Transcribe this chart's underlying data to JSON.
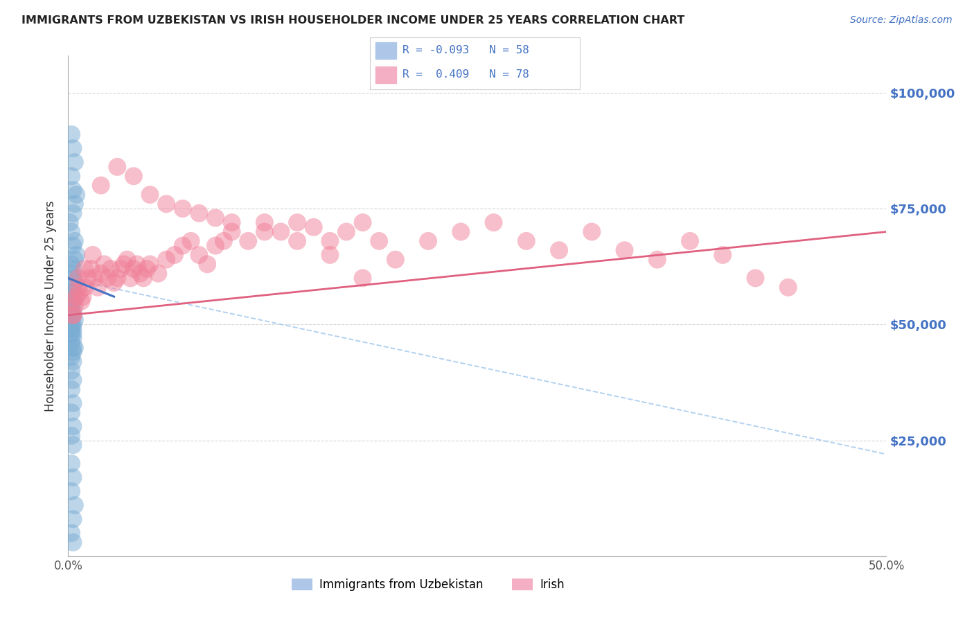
{
  "title": "IMMIGRANTS FROM UZBEKISTAN VS IRISH HOUSEHOLDER INCOME UNDER 25 YEARS CORRELATION CHART",
  "source": "Source: ZipAtlas.com",
  "ylabel": "Householder Income Under 25 years",
  "x_min": 0.0,
  "x_max": 0.5,
  "y_min": 0,
  "y_max": 108000,
  "y_ticks": [
    0,
    25000,
    50000,
    75000,
    100000
  ],
  "y_tick_labels_right": [
    "",
    "$25,000",
    "$50,000",
    "$75,000",
    "$100,000"
  ],
  "x_ticks": [
    0.0,
    0.05,
    0.1,
    0.15,
    0.2,
    0.25,
    0.3,
    0.35,
    0.4,
    0.45,
    0.5
  ],
  "x_tick_labels": [
    "0.0%",
    "",
    "",
    "",
    "",
    "",
    "",
    "",
    "",
    "",
    "50.0%"
  ],
  "legend_label1": "Immigrants from Uzbekistan",
  "legend_label2": "Irish",
  "color_uzbek": "#7aadd4",
  "color_irish": "#f08098",
  "alpha_dot": 0.5,
  "background_color": "#ffffff",
  "grid_color": "#cccccc",
  "uzbek_x": [
    0.002,
    0.003,
    0.004,
    0.002,
    0.003,
    0.005,
    0.004,
    0.003,
    0.001,
    0.002,
    0.004,
    0.003,
    0.005,
    0.004,
    0.002,
    0.003,
    0.002,
    0.003,
    0.004,
    0.003,
    0.002,
    0.003,
    0.004,
    0.002,
    0.003,
    0.002,
    0.003,
    0.002,
    0.003,
    0.004,
    0.003,
    0.002,
    0.003,
    0.002,
    0.003,
    0.002,
    0.003,
    0.002,
    0.003,
    0.004,
    0.003,
    0.002,
    0.003,
    0.002,
    0.003,
    0.002,
    0.003,
    0.002,
    0.003,
    0.002,
    0.003,
    0.002,
    0.003,
    0.002,
    0.004,
    0.003,
    0.002,
    0.003
  ],
  "uzbek_y": [
    91000,
    88000,
    85000,
    82000,
    79000,
    78000,
    76000,
    74000,
    72000,
    70000,
    68000,
    67000,
    65000,
    64000,
    63000,
    62000,
    61000,
    60000,
    59000,
    58000,
    57000,
    57000,
    56000,
    55000,
    55000,
    54000,
    53000,
    52000,
    52000,
    51000,
    50000,
    50000,
    49000,
    49000,
    48000,
    48000,
    47000,
    46000,
    45000,
    45000,
    44000,
    43000,
    42000,
    40000,
    38000,
    36000,
    33000,
    31000,
    28000,
    26000,
    24000,
    20000,
    17000,
    14000,
    11000,
    8000,
    5000,
    3000
  ],
  "irish_x": [
    0.002,
    0.003,
    0.004,
    0.005,
    0.006,
    0.007,
    0.008,
    0.009,
    0.01,
    0.012,
    0.014,
    0.016,
    0.018,
    0.02,
    0.022,
    0.024,
    0.026,
    0.028,
    0.03,
    0.032,
    0.034,
    0.036,
    0.038,
    0.04,
    0.042,
    0.044,
    0.046,
    0.048,
    0.05,
    0.055,
    0.06,
    0.065,
    0.07,
    0.075,
    0.08,
    0.085,
    0.09,
    0.095,
    0.1,
    0.11,
    0.12,
    0.13,
    0.14,
    0.15,
    0.16,
    0.17,
    0.18,
    0.19,
    0.2,
    0.22,
    0.24,
    0.26,
    0.28,
    0.3,
    0.32,
    0.34,
    0.36,
    0.38,
    0.4,
    0.42,
    0.44,
    0.003,
    0.006,
    0.01,
    0.015,
    0.02,
    0.03,
    0.04,
    0.05,
    0.06,
    0.07,
    0.08,
    0.09,
    0.1,
    0.12,
    0.14,
    0.16,
    0.18
  ],
  "irish_y": [
    55000,
    52000,
    54000,
    56000,
    58000,
    57000,
    55000,
    56000,
    58000,
    60000,
    62000,
    60000,
    58000,
    61000,
    63000,
    60000,
    62000,
    59000,
    60000,
    62000,
    63000,
    64000,
    60000,
    62000,
    63000,
    61000,
    60000,
    62000,
    63000,
    61000,
    64000,
    65000,
    67000,
    68000,
    65000,
    63000,
    67000,
    68000,
    70000,
    68000,
    72000,
    70000,
    72000,
    71000,
    68000,
    70000,
    72000,
    68000,
    64000,
    68000,
    70000,
    72000,
    68000,
    66000,
    70000,
    66000,
    64000,
    68000,
    65000,
    60000,
    58000,
    52000,
    60000,
    62000,
    65000,
    80000,
    84000,
    82000,
    78000,
    76000,
    75000,
    74000,
    73000,
    72000,
    70000,
    68000,
    65000,
    60000
  ],
  "trend_uzbek_x0": 0.0,
  "trend_uzbek_x1": 0.028,
  "trend_uzbek_y0": 60000,
  "trend_uzbek_y1": 56000,
  "trend_uzbek_color": "#4472c4",
  "trend_uzbek_lw": 2.2,
  "trend_irish_x0": 0.0,
  "trend_irish_x1": 0.5,
  "trend_irish_y0": 52000,
  "trend_irish_y1": 70000,
  "trend_irish_color": "#e06080",
  "trend_irish_lw": 2.0,
  "trend_dashed_x0": 0.005,
  "trend_dashed_x1": 0.5,
  "trend_dashed_y0": 59500,
  "trend_dashed_y1": 22000,
  "trend_dashed_color": "#aaccee",
  "trend_dashed_lw": 1.4
}
